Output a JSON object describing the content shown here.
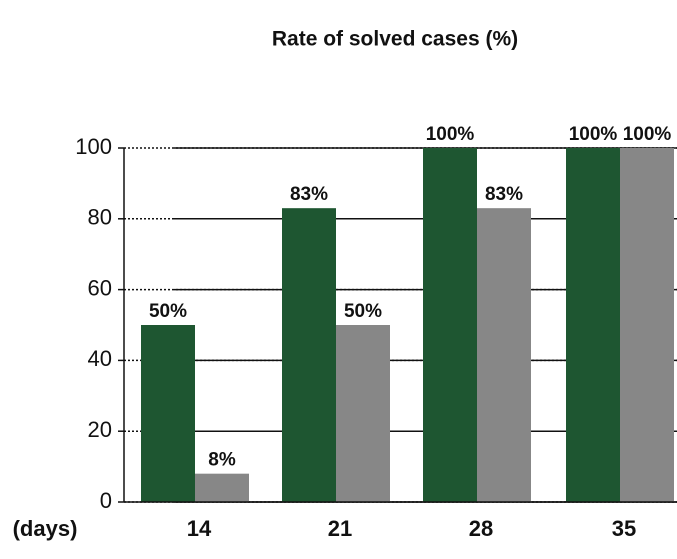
{
  "chart_data": {
    "type": "bar",
    "title": "Rate of solved cases (%)",
    "xlabel": "(days)",
    "categories": [
      "14",
      "21",
      "28",
      "35"
    ],
    "series": [
      {
        "color": "#1e5631",
        "values": [
          50,
          83,
          100,
          100
        ],
        "value_labels": [
          "50%",
          "83%",
          "100%",
          "100%"
        ]
      },
      {
        "color": "#878787",
        "values": [
          8,
          50,
          83,
          100
        ],
        "value_labels": [
          "8%",
          "50%",
          "83%",
          "100%"
        ]
      }
    ],
    "ylim": [
      0,
      100
    ],
    "yticks": [
      0,
      20,
      40,
      60,
      80,
      100
    ],
    "grid": true
  }
}
